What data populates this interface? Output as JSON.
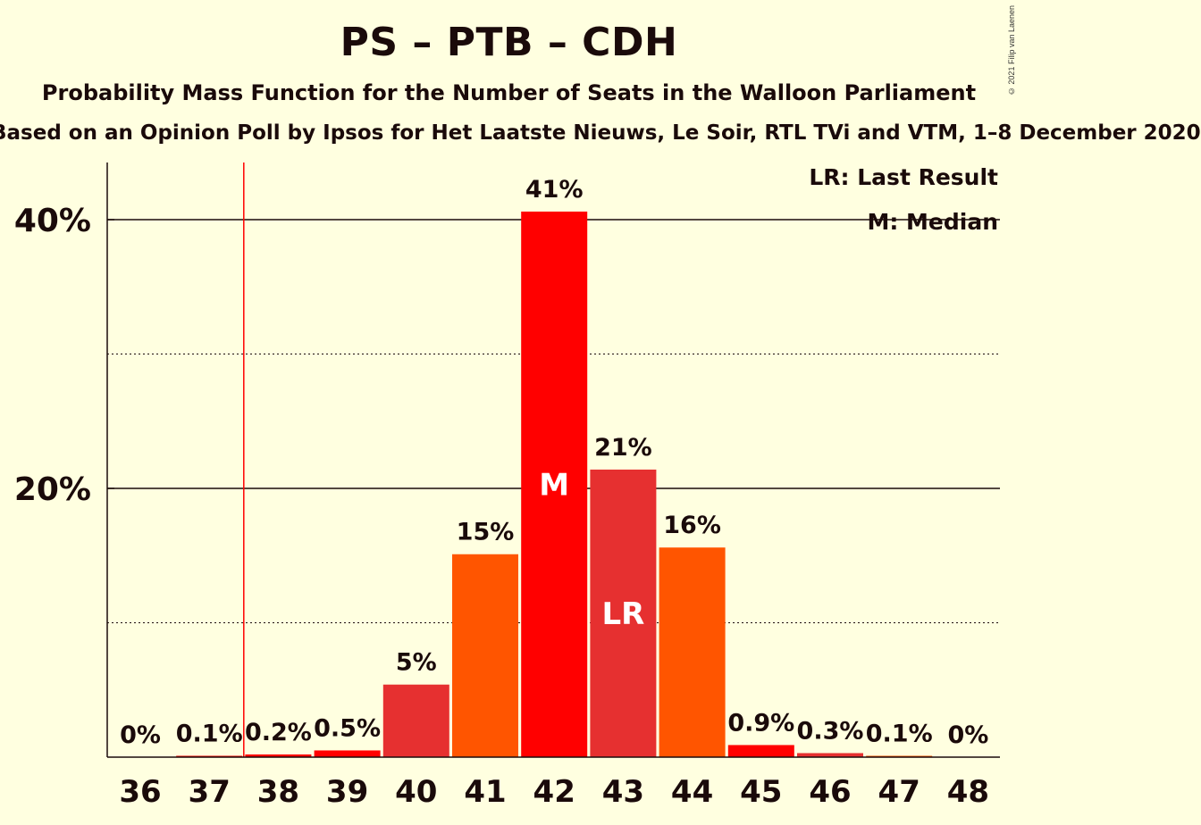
{
  "chart_data": {
    "type": "bar",
    "title": "PS – PTB – CDH",
    "subtitle": "Probability Mass Function for the Number of Seats in the Walloon Parliament",
    "source": "Based on an Opinion Poll by Ipsos for Het Laatste Nieuws, Le Soir, RTL TVi and VTM, 1–8 December 2020",
    "copyright": "© 2021 Filip van Laenen",
    "categories": [
      "36",
      "37",
      "38",
      "39",
      "40",
      "41",
      "42",
      "43",
      "44",
      "45",
      "46",
      "47",
      "48"
    ],
    "values": [
      0,
      0.1,
      0.2,
      0.5,
      5.4,
      15.1,
      40.6,
      21.4,
      15.6,
      0.9,
      0.3,
      0.1,
      0
    ],
    "value_labels": [
      "0%",
      "0.1%",
      "0.2%",
      "0.5%",
      "5%",
      "15%",
      "41%",
      "21%",
      "16%",
      "0.9%",
      "0.3%",
      "0.1%",
      "0%"
    ],
    "bar_colors": [
      "#ff5500",
      "#ff0000",
      "#ff0000",
      "#ff0000",
      "#e63030",
      "#ff5500",
      "#ff0000",
      "#e63030",
      "#ff5500",
      "#ff0000",
      "#e63030",
      "#ff5500",
      "#ff0000"
    ],
    "ylim": [
      0,
      44
    ],
    "yticks_major": [
      20,
      40
    ],
    "ytick_labels": [
      "20%",
      "40%"
    ],
    "yticks_minor": [
      10,
      30
    ],
    "last_result_line_at": 37.5,
    "median_category": "42",
    "median_marker": "M",
    "last_result_category": "43",
    "last_result_marker": "LR",
    "legend": {
      "placement": "top-right",
      "lr": "LR: Last Result",
      "m": "M: Median"
    }
  }
}
